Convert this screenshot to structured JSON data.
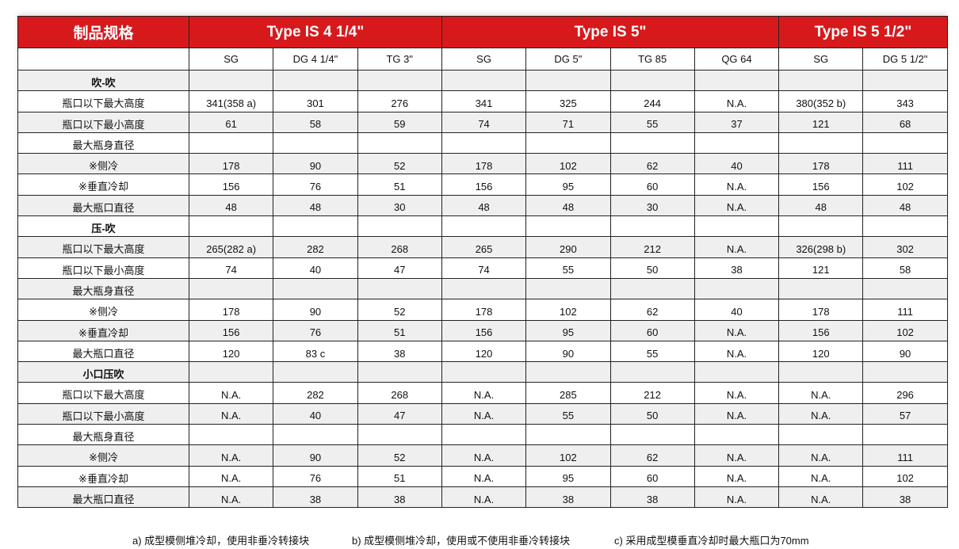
{
  "header": {
    "spec_label": "制品规格",
    "groups": [
      {
        "label": "Type IS 4 1/4\"",
        "span": 3
      },
      {
        "label": "Type IS 5\"",
        "span": 4
      },
      {
        "label": "Type IS 5 1/2\"",
        "span": 2
      }
    ],
    "columns": [
      "SG",
      "DG 4 1/4\"",
      "TG 3\"",
      "SG",
      "DG 5\"",
      "TG 85",
      "QG 64",
      "SG",
      "DG  5 1/2\""
    ]
  },
  "rows": [
    {
      "label": "吹-吹",
      "section": true,
      "values": [
        "",
        "",
        "",
        "",
        "",
        "",
        "",
        "",
        ""
      ]
    },
    {
      "label": "瓶口以下最大高度",
      "values": [
        "341(358 a)",
        "301",
        "276",
        "341",
        "325",
        "244",
        "N.A.",
        "380(352 b)",
        "343"
      ]
    },
    {
      "label": "瓶口以下最小高度",
      "values": [
        "61",
        "58",
        "59",
        "74",
        "71",
        "55",
        "37",
        "121",
        "68"
      ]
    },
    {
      "label": "最大瓶身直径",
      "values": [
        "",
        "",
        "",
        "",
        "",
        "",
        "",
        "",
        ""
      ]
    },
    {
      "label": "※侧冷",
      "values": [
        "178",
        "90",
        "52",
        "178",
        "102",
        "62",
        "40",
        "178",
        "111"
      ]
    },
    {
      "label": "※垂直冷却",
      "values": [
        "156",
        "76",
        "51",
        "156",
        "95",
        "60",
        "N.A.",
        "156",
        "102"
      ]
    },
    {
      "label": "最大瓶口直径",
      "values": [
        "48",
        "48",
        "30",
        "48",
        "48",
        "30",
        "N.A.",
        "48",
        "48"
      ]
    },
    {
      "label": "压-吹",
      "section": true,
      "values": [
        "",
        "",
        "",
        "",
        "",
        "",
        "",
        "",
        ""
      ]
    },
    {
      "label": "瓶口以下最大高度",
      "values": [
        "265(282 a)",
        "282",
        "268",
        "265",
        "290",
        "212",
        "N.A.",
        "326(298 b)",
        "302"
      ]
    },
    {
      "label": "瓶口以下最小高度",
      "values": [
        "74",
        "40",
        "47",
        "74",
        "55",
        "50",
        "38",
        "121",
        "58"
      ]
    },
    {
      "label": "最大瓶身直径",
      "values": [
        "",
        "",
        "",
        "",
        "",
        "",
        "",
        "",
        ""
      ]
    },
    {
      "label": "※侧冷",
      "values": [
        "178",
        "90",
        "52",
        "178",
        "102",
        "62",
        "40",
        "178",
        "111"
      ]
    },
    {
      "label": "※垂直冷却",
      "values": [
        "156",
        "76",
        "51",
        "156",
        "95",
        "60",
        "N.A.",
        "156",
        "102"
      ]
    },
    {
      "label": "最大瓶口直径",
      "values": [
        "120",
        "83 c",
        "38",
        "120",
        "90",
        "55",
        "N.A.",
        "120",
        "90"
      ]
    },
    {
      "label": "小口压吹",
      "section": true,
      "values": [
        "",
        "",
        "",
        "",
        "",
        "",
        "",
        "",
        ""
      ]
    },
    {
      "label": "瓶口以下最大高度",
      "values": [
        "N.A.",
        "282",
        "268",
        "N.A.",
        "285",
        "212",
        "N.A.",
        "N.A.",
        "296"
      ]
    },
    {
      "label": "瓶口以下最小高度",
      "values": [
        "N.A.",
        "40",
        "47",
        "N.A.",
        "55",
        "50",
        "N.A.",
        "N.A.",
        "57"
      ]
    },
    {
      "label": "最大瓶身直径",
      "values": [
        "",
        "",
        "",
        "",
        "",
        "",
        "",
        "",
        ""
      ]
    },
    {
      "label": "※侧冷",
      "values": [
        "N.A.",
        "90",
        "52",
        "N.A.",
        "102",
        "62",
        "N.A.",
        "N.A.",
        "111"
      ]
    },
    {
      "label": "※垂直冷却",
      "values": [
        "N.A.",
        "76",
        "51",
        "N.A.",
        "95",
        "60",
        "N.A.",
        "N.A.",
        "102"
      ]
    },
    {
      "label": "最大瓶口直径",
      "values": [
        "N.A.",
        "38",
        "38",
        "N.A.",
        "38",
        "38",
        "N.A.",
        "N.A.",
        "38"
      ]
    }
  ],
  "notes": [
    "a) 成型模侧堆冷却，使用非垂冷转接块",
    "b) 成型模侧堆冷却，使用或不使用非垂冷转接块",
    "c) 采用成型模垂直冷却时最大瓶口为70mm"
  ],
  "colors": {
    "header_red": "#d7191c",
    "row_gray": "#efefef"
  }
}
